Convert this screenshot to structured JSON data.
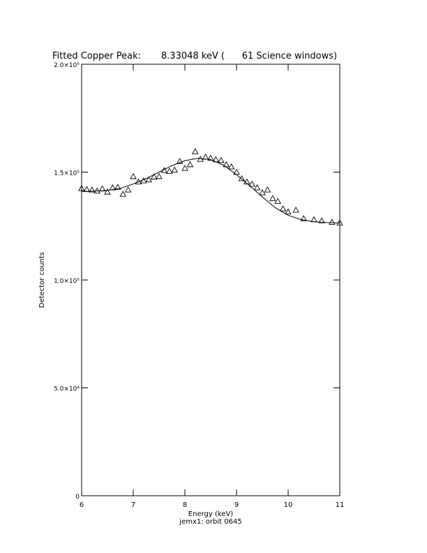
{
  "chart_data": {
    "type": "scatter",
    "title": "Fitted Copper Peak:       8.33048 keV (      61 Science windows)",
    "xlabel": "Energy (keV)",
    "ylabel": "Detector counts",
    "subtitle": "jemx1: orbit 0645",
    "xlim": [
      6,
      11
    ],
    "ylim": [
      0,
      200000
    ],
    "xticks": [
      6,
      7,
      8,
      9,
      10,
      11
    ],
    "yticks": [
      0,
      {
        "value": 50000,
        "label": "5.0×10⁴"
      },
      {
        "value": 100000,
        "label": "1.0×10⁵"
      },
      {
        "value": 150000,
        "label": "1.5×10⁵"
      },
      {
        "value": 200000,
        "label": "2.0×10⁵"
      }
    ],
    "color": "#000000",
    "points": {
      "x": [
        6.0,
        6.1,
        6.2,
        6.3,
        6.4,
        6.5,
        6.6,
        6.7,
        6.8,
        6.9,
        7.0,
        7.1,
        7.2,
        7.3,
        7.4,
        7.5,
        7.6,
        7.7,
        7.8,
        7.9,
        8.0,
        8.1,
        8.2,
        8.3,
        8.4,
        8.5,
        8.6,
        8.7,
        8.8,
        8.9,
        9.0,
        9.1,
        9.2,
        9.3,
        9.4,
        9.5,
        9.6,
        9.7,
        9.8,
        9.9,
        10.0,
        10.15,
        10.3,
        10.5,
        10.65,
        10.85,
        11.0
      ],
      "values": [
        142500,
        142000,
        141800,
        141300,
        142300,
        140800,
        142800,
        143000,
        139800,
        141800,
        148000,
        145500,
        146000,
        146500,
        147800,
        148000,
        150800,
        150400,
        151000,
        155000,
        151800,
        153500,
        159500,
        156000,
        157000,
        156500,
        155800,
        155500,
        153500,
        152500,
        150000,
        147000,
        145500,
        144500,
        142800,
        140500,
        141800,
        137800,
        136500,
        133000,
        131600,
        132400,
        128500,
        128000,
        127500,
        126800,
        126500
      ]
    },
    "fit": {
      "x": [
        6.0,
        6.25,
        6.5,
        6.75,
        7.0,
        7.25,
        7.5,
        7.75,
        8.0,
        8.25,
        8.5,
        8.75,
        9.0,
        9.25,
        9.5,
        9.75,
        10.0,
        10.25,
        10.5,
        10.75,
        11.0
      ],
      "values": [
        141000,
        141200,
        141500,
        142500,
        144500,
        147000,
        150000,
        153000,
        155300,
        156400,
        155800,
        153200,
        148800,
        143800,
        138500,
        133500,
        130000,
        128000,
        127000,
        126600,
        126400
      ]
    }
  }
}
